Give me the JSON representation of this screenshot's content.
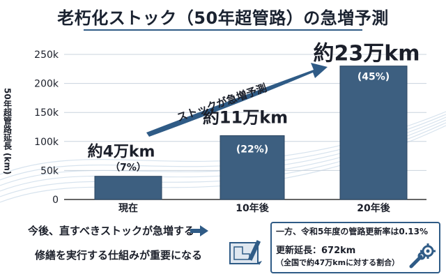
{
  "title": "老朽化ストック（50年超管路）の急増予測",
  "chart_data": {
    "type": "bar",
    "ylabel": "50年超管路延長 (km)",
    "ylim": [
      0,
      250
    ],
    "yticks": [
      0,
      50,
      100,
      150,
      200,
      250
    ],
    "ytick_labels": [
      "0",
      "50k",
      "100k",
      "150k",
      "200k",
      "250k"
    ],
    "categories": [
      "現在",
      "10年後",
      "20年後"
    ],
    "values": [
      40,
      110,
      230
    ],
    "value_labels": [
      "約4万km",
      "約11万km",
      "約23万km"
    ],
    "pct_labels": [
      "（7%）",
      "(22%)",
      "(45%)"
    ],
    "bar_color": "#3d5f80",
    "trend_annotation": "ストックが急増予測"
  },
  "messages": {
    "line1": "今後、直すべきストックが急増する",
    "line2": "修繕を実行する仕組みが重要になる"
  },
  "note": {
    "line1": "一方、令和5年度の管路更新率は0.13%",
    "line2": "更新延長：672km",
    "line3": "（全国で約47万kmに対する割合）"
  },
  "icons": {
    "arrow": "right-arrow-icon",
    "blueprint": "blueprint-icon",
    "wrench": "wrench-gear-icon"
  },
  "colors": {
    "accent": "#2f5b86",
    "bar": "#3d5f80"
  }
}
